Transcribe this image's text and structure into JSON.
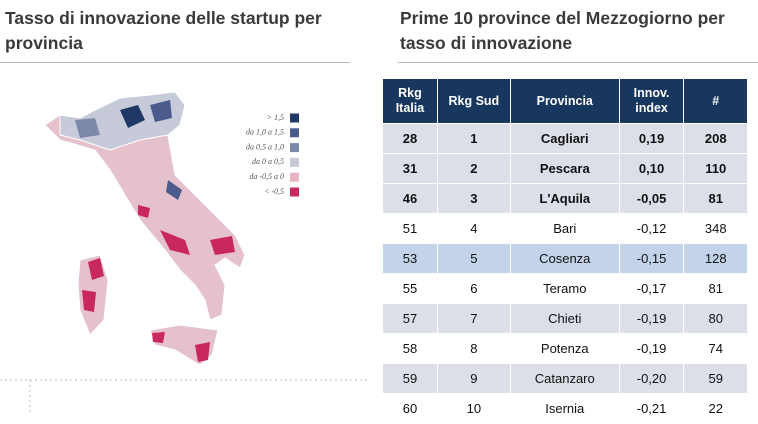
{
  "left": {
    "title": "Tasso di innovazione  delle startup per provincia",
    "legend": [
      {
        "label": "> 1,5",
        "color": "#1f3864"
      },
      {
        "label": "da 1,0 a 1,5",
        "color": "#4a5b8c"
      },
      {
        "label": "da 0,5 a 1,0",
        "color": "#7d89ab"
      },
      {
        "label": "da 0 a 0,5",
        "color": "#c6cad9"
      },
      {
        "label": "da -0,5 a 0",
        "color": "#e7b6c2"
      },
      {
        "label": "< -0,5",
        "color": "#c8285c"
      }
    ]
  },
  "right": {
    "title": "Prime 10 province del Mezzogiorno  per tasso di innovazione"
  },
  "table": {
    "header": [
      "Rkg Italia",
      "Rkg Sud",
      "Provincia",
      "Innov. index",
      "#"
    ],
    "rows": [
      [
        "28",
        "1",
        "Cagliari",
        "0,19",
        "208"
      ],
      [
        "31",
        "2",
        "Pescara",
        "0,10",
        "110"
      ],
      [
        "46",
        "3",
        "L'Aquila",
        "-0,05",
        "81"
      ],
      [
        "51",
        "4",
        "Bari",
        "-0,12",
        "348"
      ],
      [
        "53",
        "5",
        "Cosenza",
        "-0,15",
        "128"
      ],
      [
        "55",
        "6",
        "Teramo",
        "-0,17",
        "81"
      ],
      [
        "57",
        "7",
        "Chieti",
        "-0,19",
        "80"
      ],
      [
        "58",
        "8",
        "Potenza",
        "-0,19",
        "74"
      ],
      [
        "59",
        "9",
        "Catanzaro",
        "-0,20",
        "59"
      ],
      [
        "60",
        "10",
        "Isernia",
        "-0,21",
        "22"
      ]
    ]
  }
}
